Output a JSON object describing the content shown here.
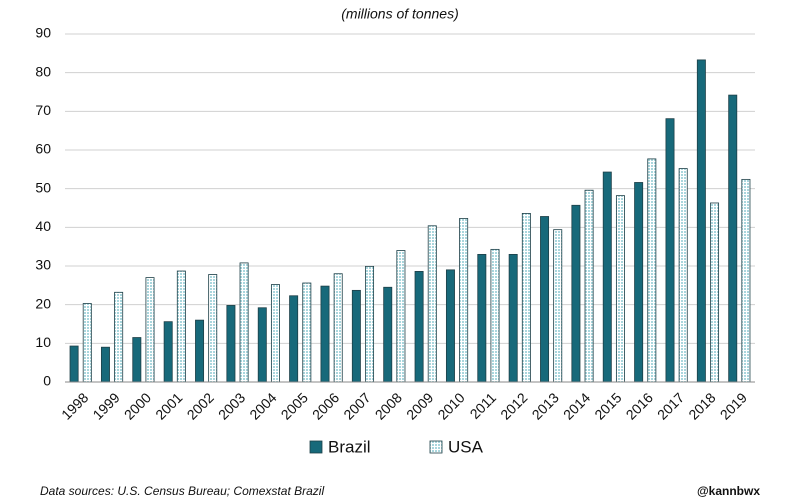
{
  "chart_data": {
    "type": "bar",
    "subtitle": "(millions of tonnes)",
    "categories": [
      "1998",
      "1999",
      "2000",
      "2001",
      "2002",
      "2003",
      "2004",
      "2005",
      "2006",
      "2007",
      "2008",
      "2009",
      "2010",
      "2011",
      "2012",
      "2013",
      "2014",
      "2015",
      "2016",
      "2017",
      "2018",
      "2019"
    ],
    "series": [
      {
        "name": "Brazil",
        "color": "#17697a",
        "values": [
          9.3,
          9,
          11.5,
          15.6,
          16,
          19.8,
          19.2,
          22.3,
          24.8,
          23.7,
          24.5,
          28.6,
          29,
          33,
          33,
          42.8,
          45.7,
          54.3,
          51.6,
          68.1,
          83.3,
          74.2
        ]
      },
      {
        "name": "USA",
        "color": "#a9d6dd",
        "values": [
          20.3,
          23.2,
          27,
          28.7,
          27.8,
          30.8,
          25.2,
          25.6,
          28,
          29.9,
          34,
          40.4,
          42.3,
          34.3,
          43.6,
          39.4,
          49.6,
          48.2,
          57.7,
          55.2,
          46.3,
          52.4
        ]
      }
    ],
    "ylim": [
      0,
      90
    ],
    "yticks": [
      0,
      10,
      20,
      30,
      40,
      50,
      60,
      70,
      80,
      90
    ],
    "grid": true,
    "legend": "bottom",
    "source": "Data sources: U.S. Census Bureau; Comexstat Brazil",
    "credit": "@kannbwx"
  }
}
